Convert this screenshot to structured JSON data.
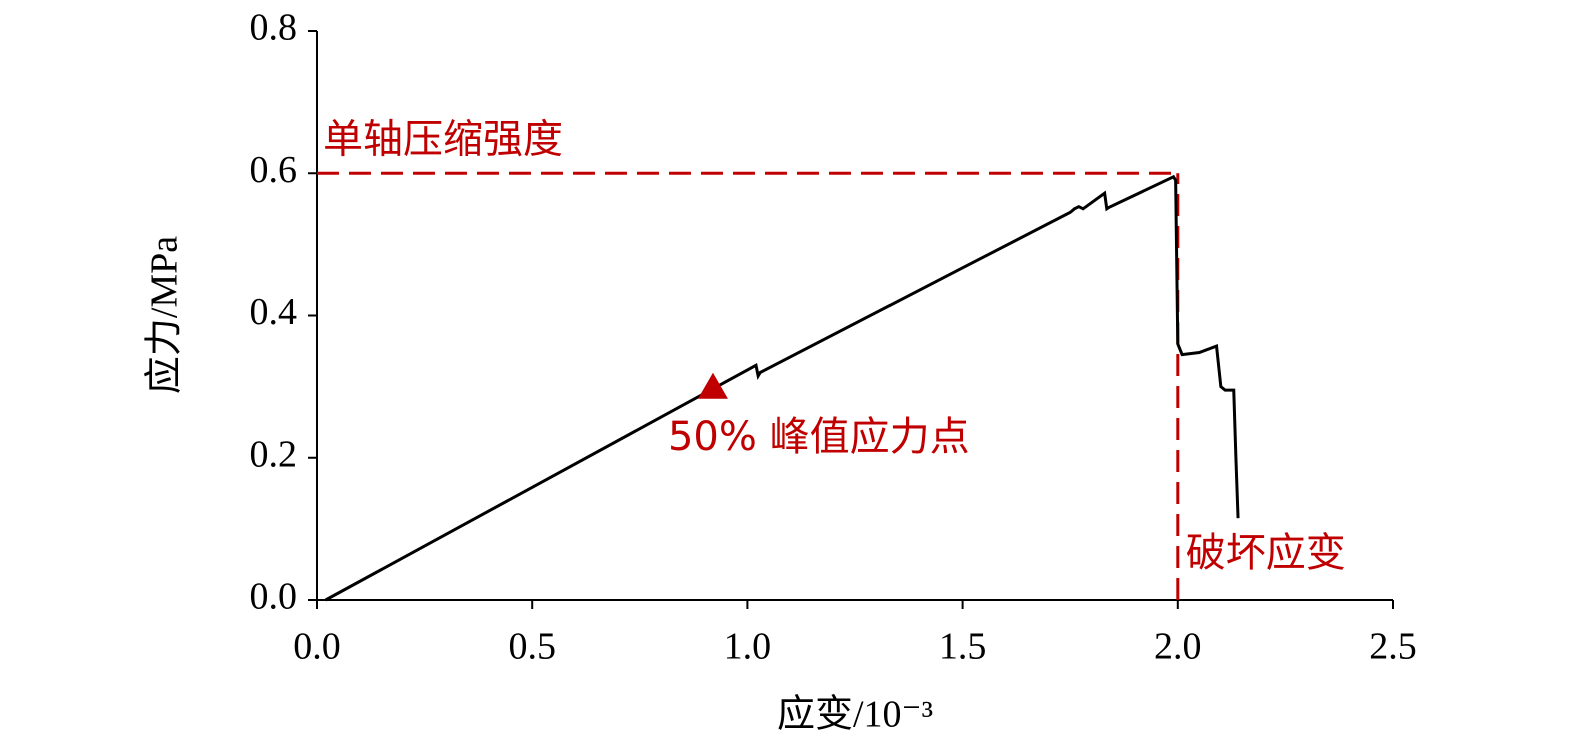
{
  "chart_data": {
    "type": "line",
    "x_label": "应变/10⁻³",
    "y_label": "应力/MPa",
    "x": [
      0.02,
      1.02,
      1.025,
      1.03,
      1.5,
      1.75,
      1.76,
      1.77,
      1.78,
      1.83,
      1.835,
      1.84,
      1.99,
      1.995,
      2.0,
      2.01,
      2.05,
      2.09,
      2.1,
      2.11,
      2.13,
      2.135,
      2.14
    ],
    "values": [
      0,
      0.33,
      0.315,
      0.32,
      0.467,
      0.545,
      0.55,
      0.553,
      0.55,
      0.572,
      0.55,
      0.552,
      0.595,
      0.59,
      0.36,
      0.345,
      0.348,
      0.357,
      0.3,
      0.295,
      0.295,
      0.2,
      0.115
    ],
    "color": "#000000",
    "xlim": [
      0,
      2.5
    ],
    "ylim": [
      0,
      0.8
    ],
    "xticks": [
      {
        "value": 0,
        "label": "0.0"
      },
      0.5,
      {
        "value": 1,
        "label": "1.0"
      },
      1.5,
      {
        "value": 2,
        "label": "2.0"
      },
      2.5
    ],
    "yticks": [
      {
        "value": 0,
        "label": "0.0"
      },
      0.2,
      0.4,
      0.6,
      0.8
    ],
    "annotation_color": "#c00000",
    "hlines": [
      {
        "value": 0.6,
        "label": "单轴压缩强度"
      }
    ],
    "vlines": [
      {
        "value": 2.0,
        "label": "破坏应变"
      }
    ],
    "markers": [
      {
        "x": 0.92,
        "value": 0.297,
        "label": "50% 峰值应力点"
      }
    ]
  }
}
